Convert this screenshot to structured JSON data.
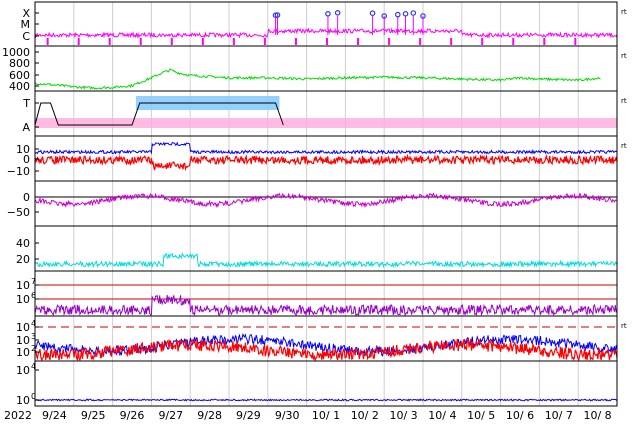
{
  "chart_data": {
    "type": "line",
    "year_label": "2022",
    "x_dates": [
      "9/24",
      "9/25",
      "9/26",
      "9/27",
      "9/28",
      "9/29",
      "9/30",
      "10/ 1",
      "10/ 2",
      "10/ 3",
      "10/ 4",
      "10/ 5",
      "10/ 6",
      "10/ 7",
      "10/ 8"
    ],
    "panels": [
      {
        "id": "xray-class",
        "tick_labels": [
          "X",
          "M",
          "C"
        ],
        "right_marker": "rt",
        "colors": {
          "line": "#ff00ff",
          "flare_marker": "#3333ff"
        },
        "flare_events_day": [
          6.2,
          6.25,
          7.55,
          7.8,
          8.7,
          9.0,
          9.35,
          9.55,
          9.75,
          10.0
        ]
      },
      {
        "id": "solar-wind-speed",
        "tick_labels": [
          "1000",
          "800",
          "600",
          "400"
        ],
        "ylim": [
          300,
          1050
        ],
        "right_marker": "rt",
        "colors": {
          "line": "#00dd00"
        },
        "values_km_s": [
          [
            0.0,
            430
          ],
          [
            0.5,
            400
          ],
          [
            1.0,
            370
          ],
          [
            1.5,
            350
          ],
          [
            2.0,
            360
          ],
          [
            2.5,
            390
          ],
          [
            3.0,
            520
          ],
          [
            3.3,
            610
          ],
          [
            3.5,
            650
          ],
          [
            3.7,
            600
          ],
          [
            4.0,
            560
          ],
          [
            4.5,
            540
          ],
          [
            5.0,
            520
          ],
          [
            6.0,
            520
          ],
          [
            7.0,
            500
          ],
          [
            8.0,
            520
          ],
          [
            9.0,
            530
          ],
          [
            10.0,
            520
          ],
          [
            11.0,
            500
          ],
          [
            12.0,
            480
          ],
          [
            12.5,
            520
          ],
          [
            13.0,
            500
          ],
          [
            14.0,
            480
          ],
          [
            14.6,
            520
          ]
        ]
      },
      {
        "id": "imf-sector",
        "tick_labels": [
          "T",
          "A"
        ],
        "right_marker": "rt",
        "colors": {
          "toward": "#88ccff",
          "away": "#ffaadd",
          "trace": "#000000"
        }
      },
      {
        "id": "imf-bz",
        "tick_labels": [
          "10",
          "0",
          "−10"
        ],
        "ylim": [
          -20,
          20
        ],
        "right_marker": "rt",
        "colors": {
          "bt": "#0000ff",
          "bz": "#ff0000"
        }
      },
      {
        "id": "magnetometer-h",
        "tick_labels": [
          "0",
          "−50"
        ],
        "ylim": [
          -90,
          30
        ],
        "colors": {
          "line": "#cc00cc",
          "reference": "#000000"
        }
      },
      {
        "id": "kp-index",
        "tick_labels": [
          "40",
          "20"
        ],
        "ylim": [
          0,
          55
        ],
        "colors": {
          "line": "#00dddd"
        }
      },
      {
        "id": "electron-flux",
        "tick_labels": [
          "10",
          "10"
        ],
        "tick_exponents": [
          "7",
          "6"
        ],
        "colors": {
          "line": "#9900cc",
          "threshold": "#cc0000"
        }
      },
      {
        "id": "proton-flux",
        "tick_labels": [
          "10",
          "10",
          "10"
        ],
        "tick_exponents": [
          "4",
          "3",
          "2"
        ],
        "right_marker": "rt",
        "colors": {
          "high": "#0000ff",
          "low": "#ff0000",
          "threshold": "#cc0000"
        }
      },
      {
        "id": "high-energy-flux",
        "tick_labels": [
          "10",
          "10"
        ],
        "tick_exponents": [
          "4",
          "0"
        ],
        "colors": {
          "line": "#0000ff"
        }
      }
    ]
  }
}
